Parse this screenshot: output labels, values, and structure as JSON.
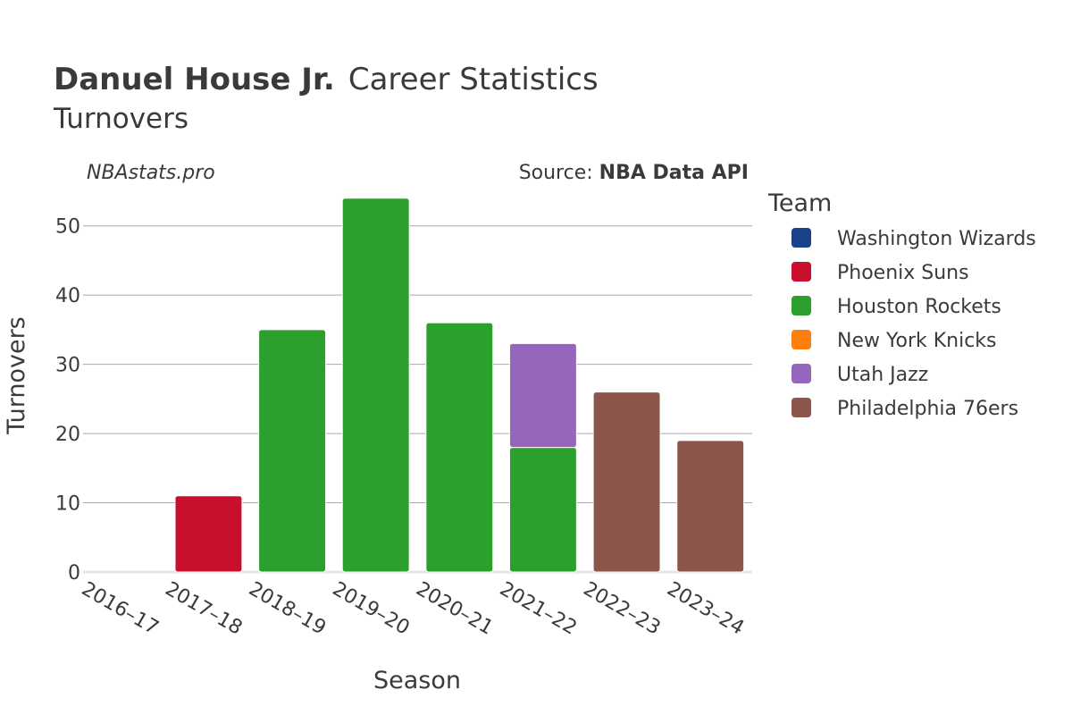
{
  "header": {
    "title_bold": "Danuel House Jr.",
    "title_rest": "Career Statistics",
    "subtitle": "Turnovers",
    "watermark": "NBAstats.pro",
    "source_label": "Source: ",
    "source_value": "NBA Data API"
  },
  "legend": {
    "title": "Team",
    "items": [
      {
        "label": "Washington Wizards",
        "color": "#1a428a"
      },
      {
        "label": "Phoenix Suns",
        "color": "#c8102e"
      },
      {
        "label": "Houston Rockets",
        "color": "#2ca02c"
      },
      {
        "label": "New York Knicks",
        "color": "#ff7f0e"
      },
      {
        "label": "Utah Jazz",
        "color": "#9467bd"
      },
      {
        "label": "Philadelphia 76ers",
        "color": "#8c564b"
      }
    ]
  },
  "chart_data": {
    "type": "bar",
    "stacked": true,
    "xlabel": "Season",
    "ylabel": "Turnovers",
    "ylim": [
      0,
      55
    ],
    "yticks": [
      0,
      10,
      20,
      30,
      40,
      50
    ],
    "grid": true,
    "legend_position": "right",
    "categories": [
      "2016–17",
      "2017–18",
      "2018–19",
      "2019–20",
      "2020–21",
      "2021–22",
      "2022–23",
      "2023–24"
    ],
    "series": [
      {
        "name": "Washington Wizards",
        "color": "#1a428a",
        "values": [
          0,
          0,
          0,
          0,
          0,
          0,
          0,
          0
        ]
      },
      {
        "name": "Phoenix Suns",
        "color": "#c8102e",
        "values": [
          0,
          11,
          0,
          0,
          0,
          0,
          0,
          0
        ]
      },
      {
        "name": "Houston Rockets",
        "color": "#2ca02c",
        "values": [
          0,
          0,
          35,
          54,
          36,
          18,
          0,
          0
        ]
      },
      {
        "name": "New York Knicks",
        "color": "#ff7f0e",
        "values": [
          0,
          0,
          0,
          0,
          0,
          0,
          0,
          0
        ]
      },
      {
        "name": "Utah Jazz",
        "color": "#9467bd",
        "values": [
          0,
          0,
          0,
          0,
          0,
          15,
          0,
          0
        ]
      },
      {
        "name": "Philadelphia 76ers",
        "color": "#8c564b",
        "values": [
          0,
          0,
          0,
          0,
          0,
          0,
          26,
          19
        ]
      }
    ]
  }
}
